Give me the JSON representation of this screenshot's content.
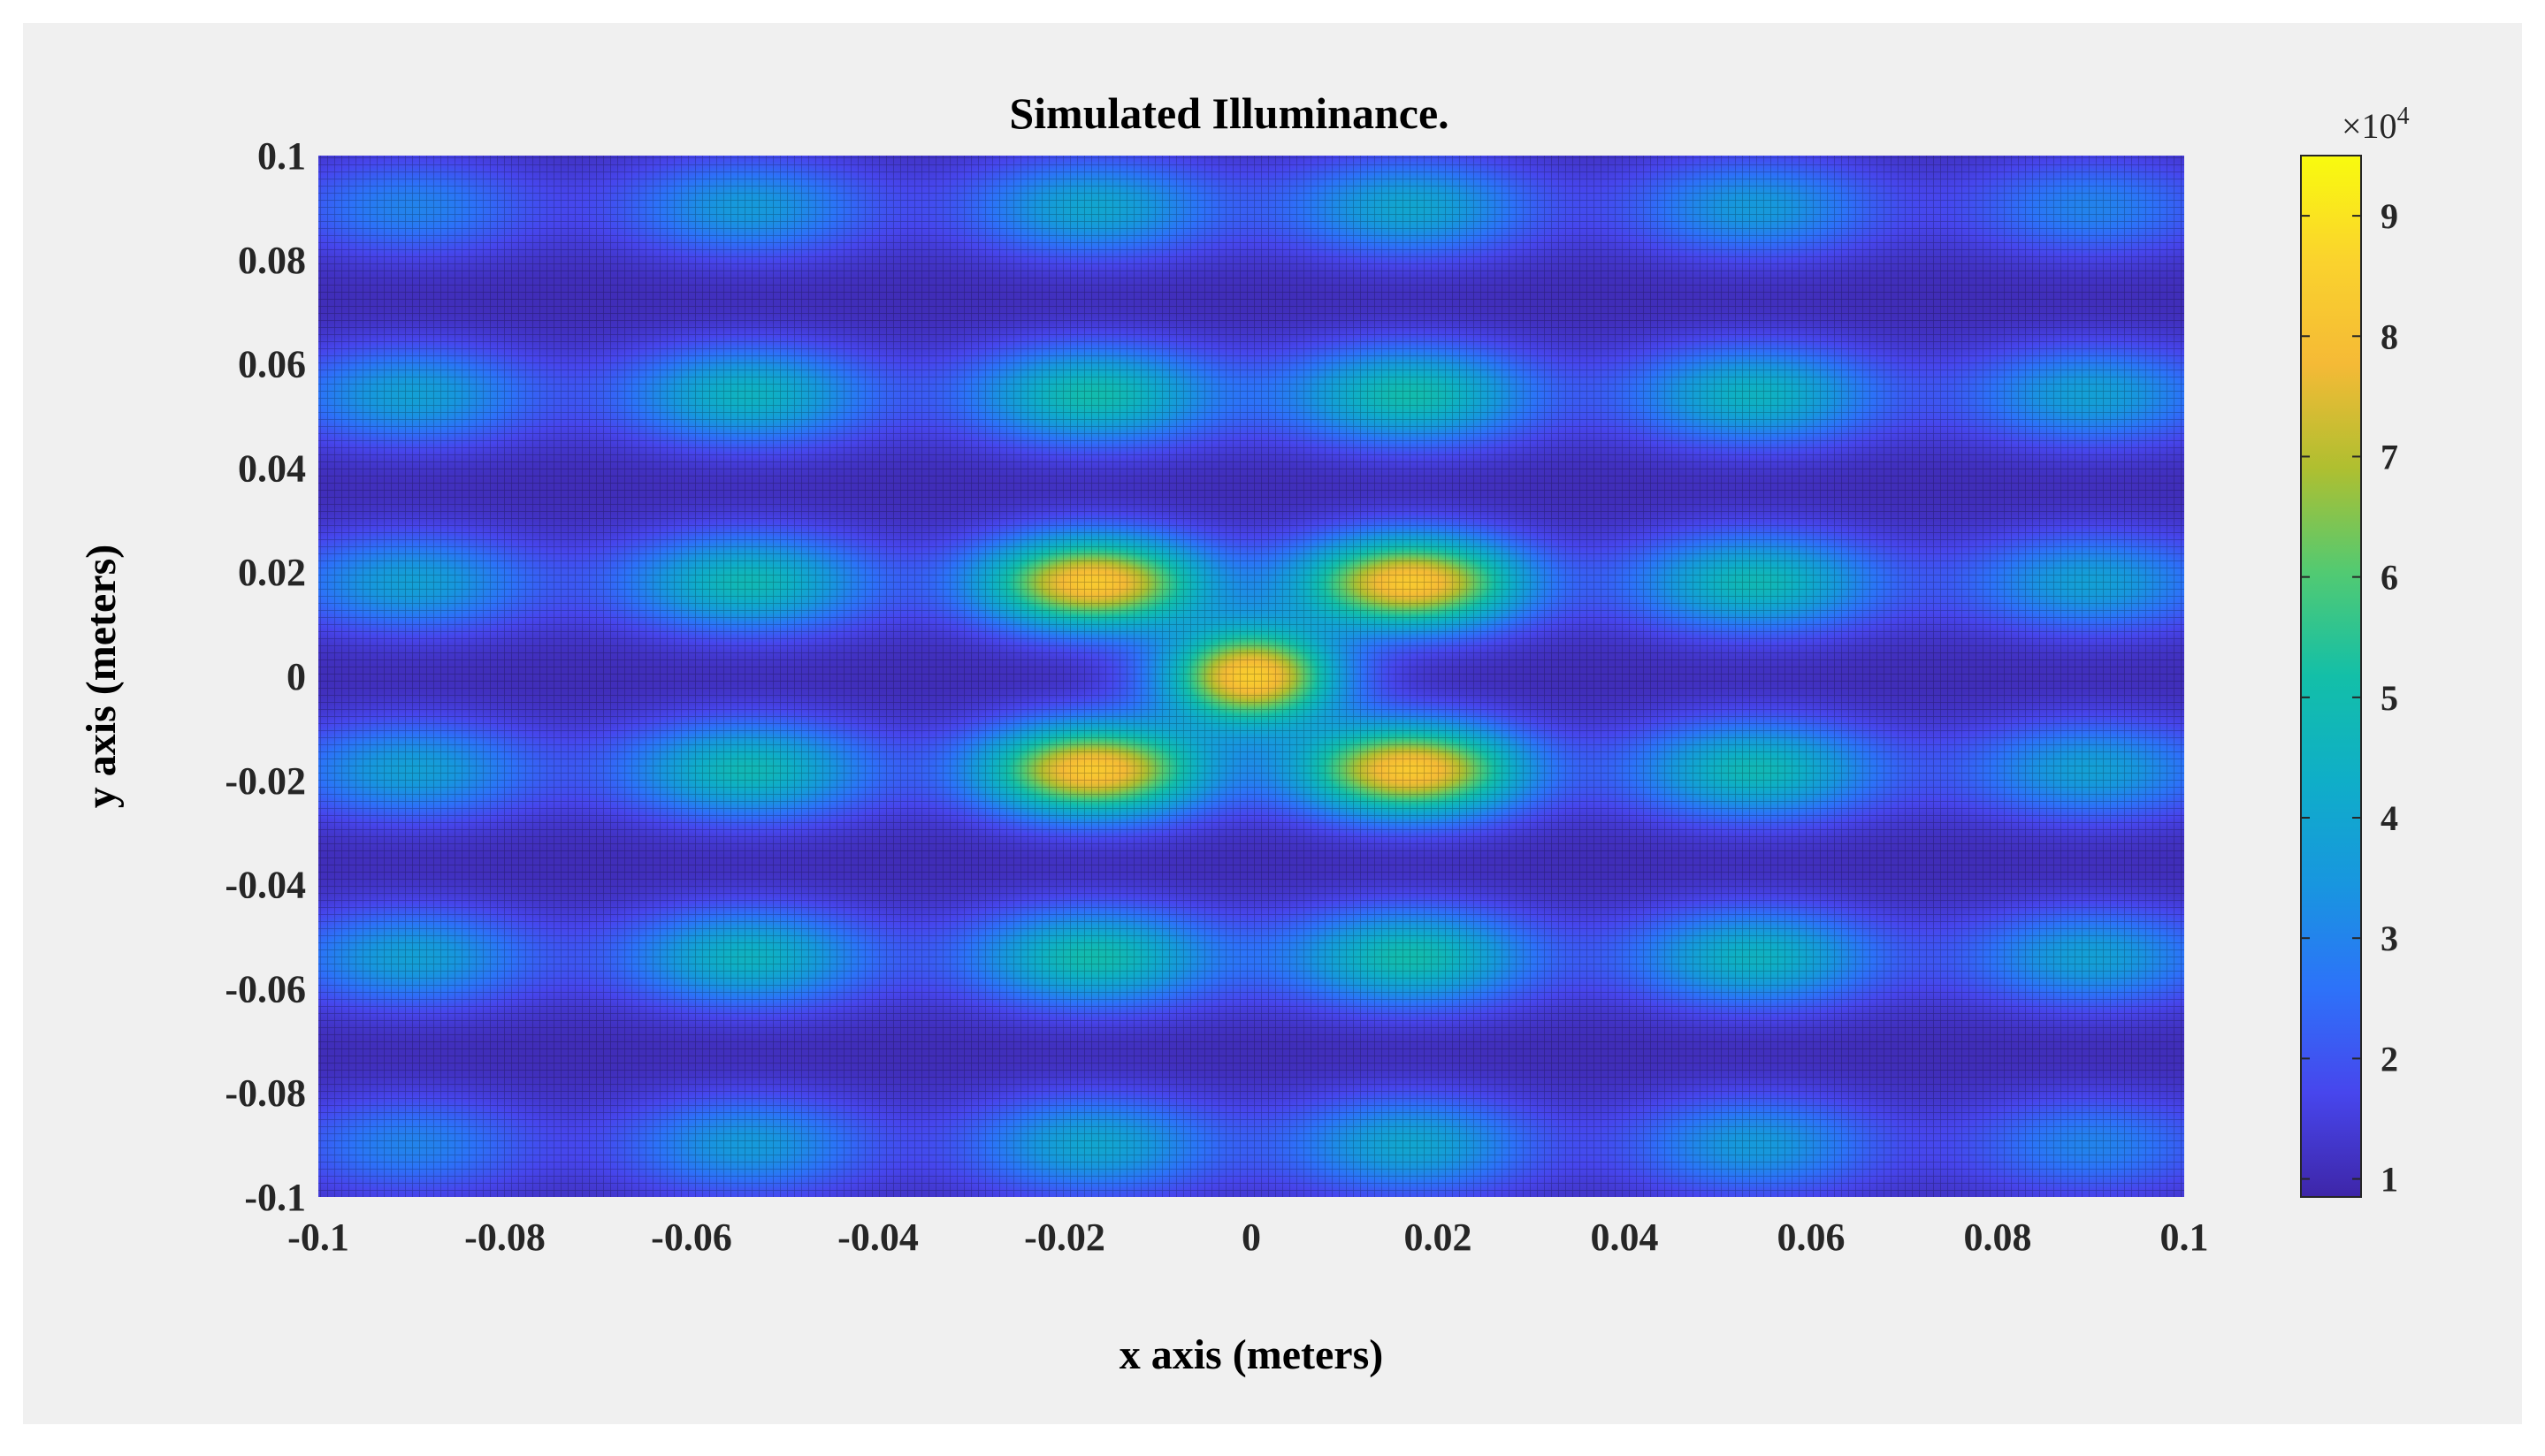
{
  "chart_data": {
    "type": "heatmap",
    "title": "Simulated Illuminance.",
    "xlabel": "x axis (meters)",
    "ylabel": "y axis (meters)",
    "xlim": [
      -0.1,
      0.1
    ],
    "ylim": [
      -0.1,
      0.1
    ],
    "x_ticks": [
      -0.1,
      -0.08,
      -0.06,
      -0.04,
      -0.02,
      0,
      0.02,
      0.04,
      0.06,
      0.08,
      0.1
    ],
    "x_tick_labels": [
      "-0.1",
      "-0.08",
      "-0.06",
      "-0.04",
      "-0.02",
      "0",
      "0.02",
      "0.04",
      "0.06",
      "0.08",
      "0.1"
    ],
    "y_ticks": [
      0.1,
      0.08,
      0.06,
      0.04,
      0.02,
      0,
      -0.02,
      -0.04,
      -0.06,
      -0.08,
      -0.1
    ],
    "y_tick_labels": [
      "0.1",
      "0.08",
      "0.06",
      "0.04",
      "0.02",
      "0",
      "-0.02",
      "-0.04",
      "-0.06",
      "-0.08",
      "-0.1"
    ],
    "colorbar": {
      "colormap": "parula",
      "range": [
        8500,
        95000
      ],
      "ticks": [
        1,
        2,
        3,
        4,
        5,
        6,
        7,
        8,
        9
      ],
      "tick_labels": [
        "1",
        "2",
        "3",
        "4",
        "5",
        "6",
        "7",
        "8",
        "9"
      ],
      "multiplier_base": "×10",
      "multiplier_exponent": "4"
    },
    "background_level": 10000,
    "hotspots": [
      {
        "x": 0,
        "y": 0,
        "value": 84000
      },
      {
        "x": -0.017,
        "y": 0.018,
        "value": 83000
      },
      {
        "x": 0.017,
        "y": 0.018,
        "value": 83000
      },
      {
        "x": -0.017,
        "y": -0.018,
        "value": 83000
      },
      {
        "x": 0.017,
        "y": -0.018,
        "value": 83000
      },
      {
        "x": -0.054,
        "y": 0.018,
        "value": 48000
      },
      {
        "x": 0.054,
        "y": 0.018,
        "value": 48000
      },
      {
        "x": -0.054,
        "y": -0.018,
        "value": 48000
      },
      {
        "x": 0.054,
        "y": -0.018,
        "value": 48000
      },
      {
        "x": -0.017,
        "y": 0.054,
        "value": 50000
      },
      {
        "x": 0.017,
        "y": 0.054,
        "value": 50000
      },
      {
        "x": -0.017,
        "y": -0.054,
        "value": 50000
      },
      {
        "x": 0.017,
        "y": -0.054,
        "value": 50000
      },
      {
        "x": -0.054,
        "y": 0.054,
        "value": 45000
      },
      {
        "x": 0.054,
        "y": 0.054,
        "value": 45000
      },
      {
        "x": -0.054,
        "y": -0.054,
        "value": 45000
      },
      {
        "x": 0.054,
        "y": -0.054,
        "value": 45000
      },
      {
        "x": -0.09,
        "y": 0.054,
        "value": 38000
      },
      {
        "x": 0.09,
        "y": 0.054,
        "value": 38000
      },
      {
        "x": -0.09,
        "y": -0.054,
        "value": 38000
      },
      {
        "x": 0.09,
        "y": -0.054,
        "value": 38000
      },
      {
        "x": -0.09,
        "y": 0.018,
        "value": 38000
      },
      {
        "x": 0.09,
        "y": 0.018,
        "value": 38000
      },
      {
        "x": -0.09,
        "y": -0.018,
        "value": 38000
      },
      {
        "x": 0.09,
        "y": -0.018,
        "value": 38000
      },
      {
        "x": -0.09,
        "y": 0.09,
        "value": 30000
      },
      {
        "x": 0.09,
        "y": 0.09,
        "value": 30000
      },
      {
        "x": -0.09,
        "y": -0.09,
        "value": 30000
      },
      {
        "x": 0.09,
        "y": -0.09,
        "value": 30000
      },
      {
        "x": -0.054,
        "y": 0.09,
        "value": 36000
      },
      {
        "x": 0.054,
        "y": 0.09,
        "value": 36000
      },
      {
        "x": -0.054,
        "y": -0.09,
        "value": 36000
      },
      {
        "x": 0.054,
        "y": -0.09,
        "value": 36000
      },
      {
        "x": -0.017,
        "y": 0.09,
        "value": 40000
      },
      {
        "x": 0.017,
        "y": 0.09,
        "value": 40000
      },
      {
        "x": -0.017,
        "y": -0.09,
        "value": 40000
      },
      {
        "x": 0.017,
        "y": -0.09,
        "value": 40000
      }
    ]
  }
}
